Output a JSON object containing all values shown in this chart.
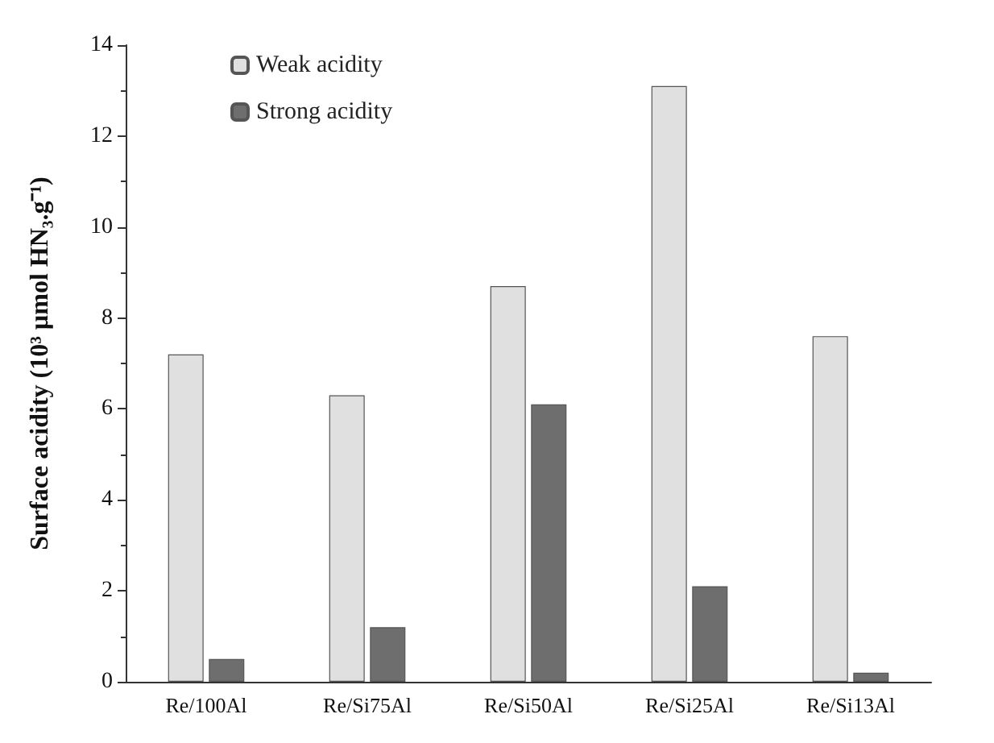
{
  "chart_data": {
    "type": "bar",
    "ylabel": "Surface acidity (10³ µmol HN₃.g⁻¹)",
    "categories": [
      "Re/100Al",
      "Re/Si75Al",
      "Re/Si50Al",
      "Re/Si25Al",
      "Re/Si13Al"
    ],
    "series": [
      {
        "name": "Weak acidity",
        "color": "#e0e0e0",
        "values": [
          7.2,
          6.3,
          8.7,
          13.1,
          7.6
        ]
      },
      {
        "name": "Strong acidity",
        "color": "#6e6e6e",
        "values": [
          0.5,
          1.2,
          6.1,
          2.1,
          0.2
        ]
      }
    ],
    "ylim": [
      0,
      14
    ],
    "yticks": [
      0,
      2,
      4,
      6,
      8,
      10,
      12,
      14
    ],
    "grid": false,
    "legend": "top left"
  }
}
